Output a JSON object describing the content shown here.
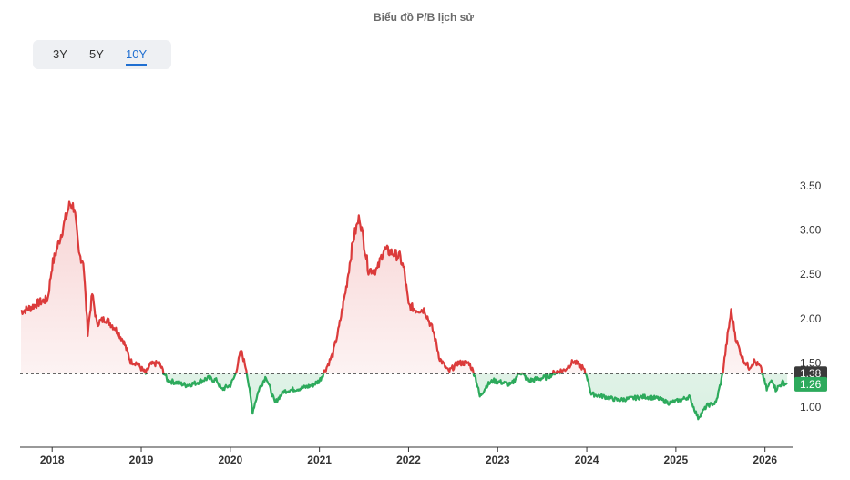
{
  "title": "Biểu đồ P/B lịch sử",
  "range_tabs": [
    {
      "label": "3Y",
      "active": false
    },
    {
      "label": "5Y",
      "active": false
    },
    {
      "label": "10Y",
      "active": true
    }
  ],
  "colors": {
    "above": "#db3b3b",
    "below": "#2daa5c",
    "reference": "#333333",
    "axis": "#333333"
  },
  "chart_data": {
    "type": "line",
    "x_tick_labels": [
      "2018",
      "2019",
      "2020",
      "2021",
      "2022",
      "2023",
      "2024",
      "2025",
      "2026"
    ],
    "y_tick_labels": [
      "1.00",
      "1.50",
      "2.00",
      "2.50",
      "3.00",
      "3.50"
    ],
    "ylim": [
      0.55,
      3.95
    ],
    "xlim": [
      2017.64,
      2026.31
    ],
    "reference_line": {
      "value": 1.38,
      "label": "1.38",
      "style": "dashed"
    },
    "last_value": {
      "value": 1.26,
      "label": "1.26"
    },
    "series": [
      {
        "points": [
          [
            2017.65,
            2.08
          ],
          [
            2017.75,
            2.12
          ],
          [
            2017.85,
            2.18
          ],
          [
            2017.95,
            2.22
          ],
          [
            2018.0,
            2.6
          ],
          [
            2018.1,
            2.95
          ],
          [
            2018.2,
            3.3
          ],
          [
            2018.25,
            3.25
          ],
          [
            2018.3,
            2.72
          ],
          [
            2018.35,
            2.65
          ],
          [
            2018.4,
            1.85
          ],
          [
            2018.45,
            2.28
          ],
          [
            2018.5,
            1.95
          ],
          [
            2018.6,
            2.0
          ],
          [
            2018.7,
            1.9
          ],
          [
            2018.8,
            1.75
          ],
          [
            2018.88,
            1.52
          ],
          [
            2018.95,
            1.5
          ],
          [
            2019.05,
            1.38
          ],
          [
            2019.1,
            1.48
          ],
          [
            2019.2,
            1.5
          ],
          [
            2019.3,
            1.3
          ],
          [
            2019.4,
            1.28
          ],
          [
            2019.5,
            1.25
          ],
          [
            2019.6,
            1.27
          ],
          [
            2019.75,
            1.33
          ],
          [
            2019.85,
            1.3
          ],
          [
            2019.9,
            1.2
          ],
          [
            2020.0,
            1.25
          ],
          [
            2020.05,
            1.35
          ],
          [
            2020.12,
            1.64
          ],
          [
            2020.18,
            1.43
          ],
          [
            2020.25,
            0.95
          ],
          [
            2020.32,
            1.2
          ],
          [
            2020.4,
            1.35
          ],
          [
            2020.5,
            1.05
          ],
          [
            2020.6,
            1.18
          ],
          [
            2020.7,
            1.2
          ],
          [
            2020.82,
            1.22
          ],
          [
            2020.92,
            1.25
          ],
          [
            2021.0,
            1.3
          ],
          [
            2021.08,
            1.45
          ],
          [
            2021.15,
            1.6
          ],
          [
            2021.22,
            1.9
          ],
          [
            2021.3,
            2.35
          ],
          [
            2021.38,
            2.9
          ],
          [
            2021.45,
            3.15
          ],
          [
            2021.55,
            2.55
          ],
          [
            2021.65,
            2.55
          ],
          [
            2021.72,
            2.78
          ],
          [
            2021.8,
            2.75
          ],
          [
            2021.9,
            2.7
          ],
          [
            2021.95,
            2.55
          ],
          [
            2022.0,
            2.15
          ],
          [
            2022.08,
            2.1
          ],
          [
            2022.18,
            2.1
          ],
          [
            2022.28,
            1.85
          ],
          [
            2022.35,
            1.55
          ],
          [
            2022.45,
            1.4
          ],
          [
            2022.55,
            1.5
          ],
          [
            2022.68,
            1.5
          ],
          [
            2022.75,
            1.35
          ],
          [
            2022.8,
            1.12
          ],
          [
            2022.88,
            1.25
          ],
          [
            2022.95,
            1.3
          ],
          [
            2023.05,
            1.28
          ],
          [
            2023.15,
            1.25
          ],
          [
            2023.25,
            1.4
          ],
          [
            2023.35,
            1.3
          ],
          [
            2023.45,
            1.32
          ],
          [
            2023.55,
            1.34
          ],
          [
            2023.65,
            1.4
          ],
          [
            2023.75,
            1.42
          ],
          [
            2023.85,
            1.52
          ],
          [
            2023.95,
            1.45
          ],
          [
            2024.0,
            1.36
          ],
          [
            2024.05,
            1.15
          ],
          [
            2024.2,
            1.12
          ],
          [
            2024.35,
            1.08
          ],
          [
            2024.5,
            1.1
          ],
          [
            2024.65,
            1.12
          ],
          [
            2024.8,
            1.1
          ],
          [
            2024.92,
            1.05
          ],
          [
            2025.05,
            1.08
          ],
          [
            2025.15,
            1.12
          ],
          [
            2025.25,
            0.88
          ],
          [
            2025.35,
            1.02
          ],
          [
            2025.45,
            1.05
          ],
          [
            2025.52,
            1.35
          ],
          [
            2025.58,
            1.8
          ],
          [
            2025.62,
            2.08
          ],
          [
            2025.68,
            1.75
          ],
          [
            2025.75,
            1.55
          ],
          [
            2025.82,
            1.45
          ],
          [
            2025.88,
            1.52
          ],
          [
            2025.95,
            1.45
          ],
          [
            2026.02,
            1.2
          ],
          [
            2026.08,
            1.32
          ],
          [
            2026.12,
            1.2
          ],
          [
            2026.2,
            1.28
          ],
          [
            2026.25,
            1.26
          ]
        ]
      }
    ]
  }
}
